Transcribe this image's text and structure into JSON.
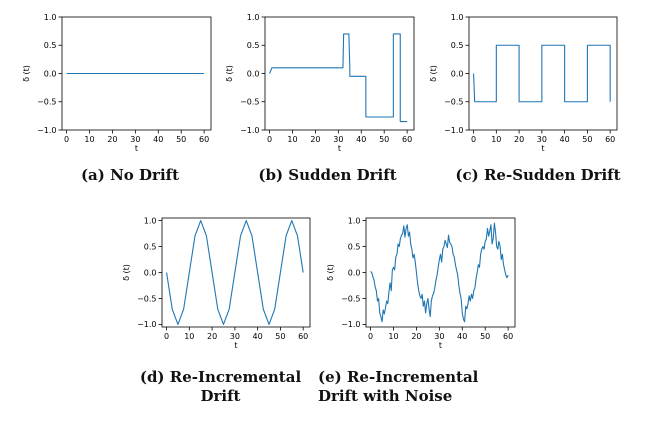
{
  "captions": {
    "a": "(a) No Drift",
    "b": "(b) Sudden Drift",
    "c": "(c) Re-Sudden Drift",
    "d_line1": "(d) Re-Incremental",
    "d_line2": "Drift",
    "e_line1": "(e) Re-Incremental",
    "e_line2": "Drift with Noise"
  },
  "line_color": "#1f77b4",
  "chart_data": [
    {
      "id": "a",
      "type": "line",
      "xlabel": "t",
      "ylabel": "δ (t)",
      "xlim": [
        -2,
        63
      ],
      "ylim": [
        -1.0,
        1.0
      ],
      "xticks": [
        0,
        10,
        20,
        30,
        40,
        50,
        60
      ],
      "yticks": [
        -1.0,
        -0.5,
        0.0,
        0.5,
        1.0
      ],
      "yticklabels": [
        "−1.0",
        "−0.5",
        "0.0",
        "0.5",
        "1.0"
      ],
      "x": [
        0,
        60
      ],
      "y": [
        0,
        0
      ]
    },
    {
      "id": "b",
      "type": "line",
      "xlabel": "t",
      "ylabel": "δ (t)",
      "xlim": [
        -2,
        63
      ],
      "ylim": [
        -1.0,
        1.0
      ],
      "xticks": [
        0,
        10,
        20,
        30,
        40,
        50,
        60
      ],
      "yticks": [
        -1.0,
        -0.5,
        0.0,
        0.5,
        1.0
      ],
      "yticklabels": [
        "−1.0",
        "−0.5",
        "0.0",
        "0.5",
        "1.0"
      ],
      "x": [
        0,
        1,
        32,
        32.3,
        34.6,
        35,
        35,
        42,
        42,
        54,
        54,
        57,
        57,
        58,
        60
      ],
      "y": [
        0,
        0.1,
        0.1,
        0.7,
        0.7,
        0.1,
        -0.05,
        -0.05,
        -0.77,
        -0.77,
        0.7,
        0.7,
        -0.85,
        -0.85,
        -0.85
      ]
    },
    {
      "id": "c",
      "type": "line",
      "xlabel": "t",
      "ylabel": "δ (t)",
      "xlim": [
        -2,
        63
      ],
      "ylim": [
        -1.0,
        1.0
      ],
      "xticks": [
        0,
        10,
        20,
        30,
        40,
        50,
        60
      ],
      "yticks": [
        -1.0,
        -0.5,
        0.0,
        0.5,
        1.0
      ],
      "yticklabels": [
        "−1.0",
        "−0.5",
        "0.0",
        "0.5",
        "1.0"
      ],
      "x": [
        0,
        0.5,
        10,
        10,
        20,
        20,
        30,
        30,
        40,
        40,
        50,
        50,
        60,
        60
      ],
      "y": [
        0,
        -0.5,
        -0.5,
        0.5,
        0.5,
        -0.5,
        -0.5,
        0.5,
        0.5,
        -0.5,
        -0.5,
        0.5,
        0.5,
        -0.5
      ]
    },
    {
      "id": "d",
      "type": "line",
      "xlabel": "t",
      "ylabel": "δ (t)",
      "xlim": [
        -2,
        63
      ],
      "ylim": [
        -1.05,
        1.05
      ],
      "xticks": [
        0,
        10,
        20,
        30,
        40,
        50,
        60
      ],
      "yticks": [
        -1.0,
        -0.5,
        0.0,
        0.5,
        1.0
      ],
      "yticklabels": [
        "−1.0",
        "−0.5",
        "0.0",
        "0.5",
        "1.0"
      ],
      "x": [
        0,
        2.5,
        5,
        7.5,
        10,
        12.5,
        15,
        17.5,
        20,
        22.5,
        25,
        27.5,
        30,
        32.5,
        35,
        37.5,
        40,
        42.5,
        45,
        47.5,
        50,
        52.5,
        55,
        57.5,
        60
      ],
      "y": [
        0,
        -0.707,
        -1,
        -0.707,
        0,
        0.707,
        1,
        0.707,
        0,
        -0.707,
        -1,
        -0.707,
        0,
        0.707,
        1,
        0.707,
        0,
        -0.707,
        -1,
        -0.707,
        0,
        0.707,
        1,
        0.707,
        0
      ]
    },
    {
      "id": "e",
      "type": "line",
      "xlabel": "t",
      "ylabel": "δ (t)",
      "xlim": [
        -2,
        63
      ],
      "ylim": [
        -1.05,
        1.05
      ],
      "xticks": [
        0,
        10,
        20,
        30,
        40,
        50,
        60
      ],
      "yticks": [
        -1.0,
        -0.5,
        0.0,
        0.5,
        1.0
      ],
      "yticklabels": [
        "−1.0",
        "−0.5",
        "0.0",
        "0.5",
        "1.0"
      ],
      "x": [
        0,
        0.5,
        1,
        1.5,
        2,
        2.5,
        3,
        3.5,
        4,
        4.5,
        5,
        5.5,
        6,
        6.5,
        7,
        7.5,
        8,
        8.5,
        9,
        9.5,
        10,
        10.5,
        11,
        11.5,
        12,
        12.5,
        13,
        13.5,
        14,
        14.5,
        15,
        15.5,
        16,
        16.5,
        17,
        17.5,
        18,
        18.5,
        19,
        19.5,
        20,
        20.5,
        21,
        21.5,
        22,
        22.5,
        23,
        23.5,
        24,
        24.5,
        25,
        25.5,
        26,
        26.5,
        27,
        27.5,
        28,
        28.5,
        29,
        29.5,
        30,
        30.5,
        31,
        31.5,
        32,
        32.5,
        33,
        33.5,
        34,
        34.5,
        35,
        35.5,
        36,
        36.5,
        37,
        37.5,
        38,
        38.5,
        39,
        39.5,
        40,
        40.5,
        41,
        41.5,
        42,
        42.5,
        43,
        43.5,
        44,
        44.5,
        45,
        45.5,
        46,
        46.5,
        47,
        47.5,
        48,
        48.5,
        49,
        49.5,
        50,
        50.5,
        51,
        51.5,
        52,
        52.5,
        53,
        53.5,
        54,
        54.5,
        55,
        55.5,
        56,
        56.5,
        57,
        57.5,
        58,
        58.5,
        59,
        59.5,
        60
      ],
      "y": [
        0.02,
        0.0,
        -0.08,
        -0.15,
        -0.28,
        -0.35,
        -0.55,
        -0.5,
        -0.78,
        -0.85,
        -0.95,
        -0.72,
        -0.8,
        -0.68,
        -0.55,
        -0.6,
        -0.38,
        -0.2,
        -0.35,
        0.05,
        0.1,
        0.05,
        0.3,
        0.35,
        0.55,
        0.5,
        0.65,
        0.72,
        0.75,
        0.9,
        0.68,
        0.85,
        0.92,
        0.7,
        0.78,
        0.55,
        0.45,
        0.28,
        0.35,
        0.2,
        0.0,
        -0.2,
        -0.35,
        -0.45,
        -0.5,
        -0.42,
        -0.65,
        -0.55,
        -0.78,
        -0.6,
        -0.5,
        -0.7,
        -0.85,
        -0.55,
        -0.45,
        -0.4,
        -0.3,
        -0.15,
        -0.05,
        0.1,
        0.25,
        0.35,
        0.2,
        0.45,
        0.5,
        0.62,
        0.55,
        0.48,
        0.72,
        0.58,
        0.55,
        0.5,
        0.35,
        0.3,
        0.15,
        0.05,
        -0.05,
        -0.25,
        -0.4,
        -0.5,
        -0.78,
        -0.9,
        -0.95,
        -0.65,
        -0.7,
        -0.6,
        -0.45,
        -0.55,
        -0.42,
        -0.5,
        -0.35,
        -0.3,
        -0.12,
        0.0,
        0.15,
        0.1,
        0.35,
        0.45,
        0.5,
        0.45,
        0.6,
        0.65,
        0.85,
        0.7,
        0.8,
        0.92,
        0.55,
        0.65,
        0.95,
        0.78,
        0.5,
        0.45,
        0.6,
        0.5,
        0.25,
        0.35,
        0.15,
        0.05,
        -0.05,
        -0.1,
        -0.05
      ]
    }
  ]
}
